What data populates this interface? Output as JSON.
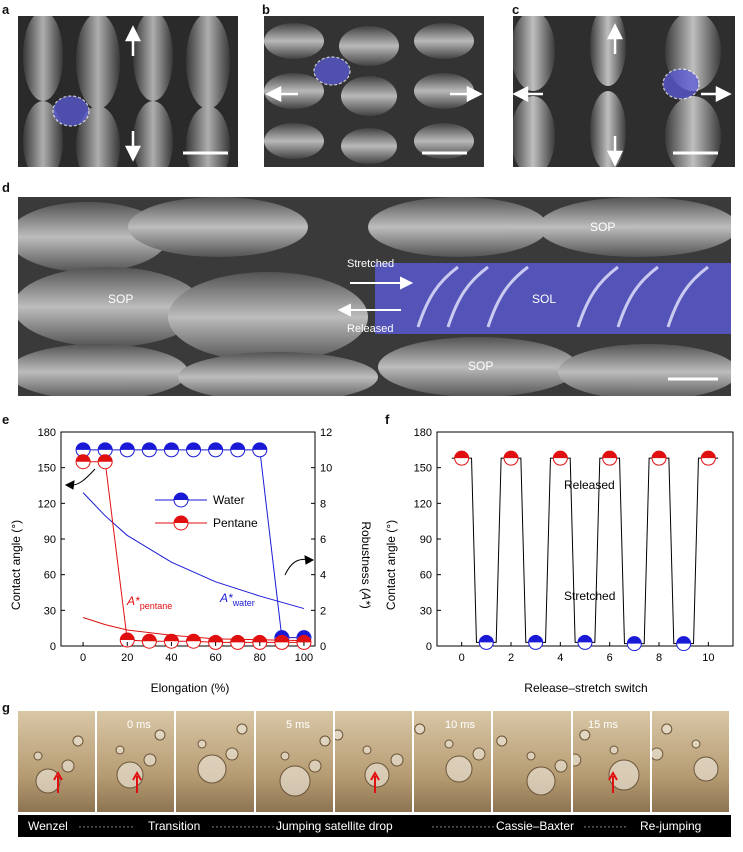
{
  "panels": {
    "a": "a",
    "b": "b",
    "c": "c",
    "d": "d",
    "e": "e",
    "f": "f",
    "g": "g"
  },
  "panel_d": {
    "labels": {
      "sop_left": "SOP",
      "sop_top": "SOP",
      "sop_bottom": "SOP",
      "sol": "SOL"
    },
    "stretched": "Stretched",
    "released": "Released"
  },
  "chart_data": [
    {
      "type": "scatter",
      "panel": "e",
      "xlabel": "Elongation (%)",
      "ylabel": "Contact angle (°)",
      "y2label_main": "Robustness (",
      "y2label_sym": "A*",
      "y2label_end": ")",
      "xlim": [
        -10,
        105
      ],
      "ylim": [
        0,
        180
      ],
      "y2lim": [
        0,
        12
      ],
      "xticks": [
        0,
        20,
        40,
        60,
        80,
        100
      ],
      "yticks": [
        0,
        30,
        60,
        90,
        120,
        150,
        180
      ],
      "y2ticks": [
        0,
        2,
        4,
        6,
        8,
        10,
        12
      ],
      "legend": [
        "Water",
        "Pentane"
      ],
      "series": [
        {
          "name": "Water",
          "color": "#1a1ad6",
          "x": [
            0,
            10,
            20,
            30,
            40,
            50,
            60,
            70,
            80,
            90,
            100
          ],
          "y": [
            165,
            165,
            165,
            165,
            165,
            165,
            165,
            165,
            165,
            7,
            7
          ]
        },
        {
          "name": "Pentane",
          "color": "#e01010",
          "x": [
            0,
            10,
            20,
            30,
            40,
            50,
            60,
            70,
            80,
            90,
            100
          ],
          "y": [
            155,
            155,
            5,
            4,
            4,
            4,
            3,
            3,
            3,
            3,
            3
          ]
        }
      ],
      "robustness_curves": [
        {
          "name": "A*water",
          "color": "#1a1ad6",
          "x": [
            0,
            10,
            20,
            40,
            60,
            80,
            100
          ],
          "y2": [
            8.6,
            7.3,
            6.2,
            4.7,
            3.6,
            2.8,
            2.1
          ]
        },
        {
          "name": "A*pentane",
          "color": "#e01010",
          "x": [
            0,
            10,
            20,
            40,
            60,
            80,
            100
          ],
          "y2": [
            1.6,
            1.2,
            0.9,
            0.6,
            0.4,
            0.35,
            0.3
          ]
        }
      ],
      "annotations": {
        "a_water_main": "A*",
        "a_water_sub": "water",
        "a_pentane_main": "A*",
        "a_pentane_sub": "pentane"
      }
    },
    {
      "type": "scatter",
      "panel": "f",
      "xlabel": "Release–stretch switch",
      "ylabel": "Contact angle (°)",
      "xlim": [
        -1,
        11
      ],
      "ylim": [
        0,
        180
      ],
      "xticks": [
        0,
        2,
        4,
        6,
        8,
        10
      ],
      "yticks": [
        0,
        30,
        60,
        90,
        120,
        150,
        180
      ],
      "series": [
        {
          "name": "Released",
          "color": "#e01010",
          "x": [
            0,
            2,
            4,
            6,
            8,
            10
          ],
          "y": [
            158,
            158,
            158,
            158,
            158,
            158
          ]
        },
        {
          "name": "Stretched",
          "color": "#1a1ad6",
          "x": [
            1,
            3,
            5,
            7,
            9
          ],
          "y": [
            3,
            3,
            3,
            2,
            2
          ]
        }
      ],
      "annotations": {
        "released": "Released",
        "stretched": "Stretched"
      }
    }
  ],
  "panel_g": {
    "timestamps": [
      "0 ms",
      "5 ms",
      "10 ms",
      "15 ms"
    ],
    "caption": [
      "Wenzel",
      "Transition",
      "Jumping satellite drop",
      "Cassie–Baxter",
      "Re-jumping"
    ]
  },
  "colors": {
    "water": "#1a1ad6",
    "pentane": "#e01010",
    "sem_overlay": "#5a5ad8"
  }
}
